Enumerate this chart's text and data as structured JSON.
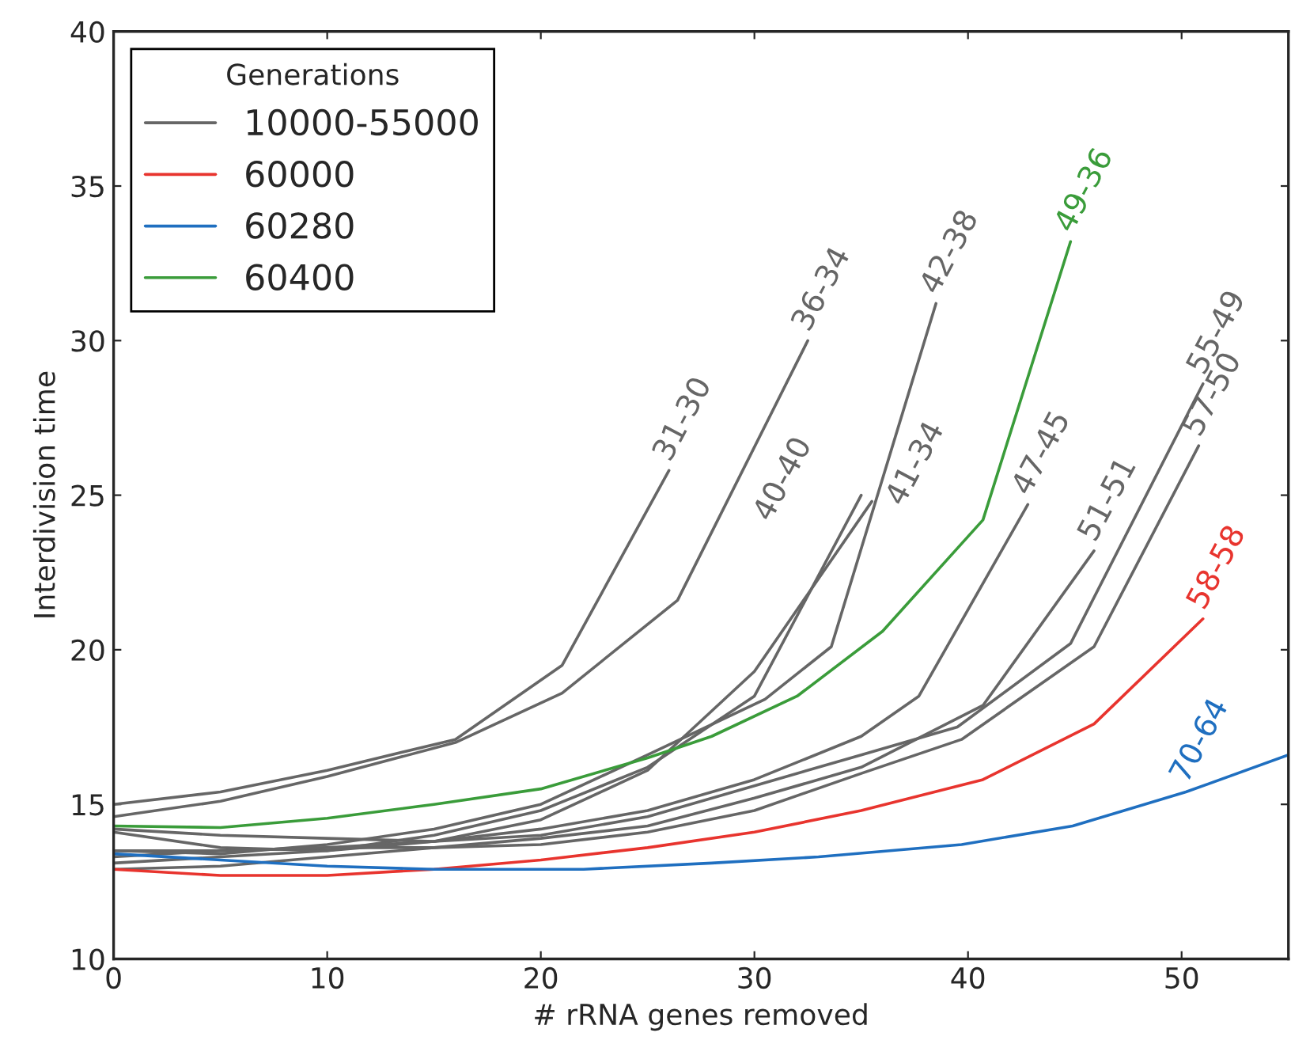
{
  "chart_data": {
    "type": "line",
    "xlabel": "# rRNA genes removed",
    "ylabel": "Interdivision time",
    "legend_title": "Generations",
    "legend": "top left",
    "grid": false,
    "xlim": [
      0,
      55
    ],
    "ylim": [
      10,
      40
    ],
    "xticks": [
      0,
      10,
      20,
      30,
      40,
      50
    ],
    "yticks": [
      10,
      15,
      20,
      25,
      30,
      35,
      40
    ],
    "series": [
      {
        "name": "10000-55000",
        "color": "#666666",
        "x": [
          0,
          5,
          10,
          16,
          21,
          26
        ],
        "values": [
          15.0,
          15.4,
          16.1,
          17.1,
          19.5,
          25.8
        ]
      },
      {
        "color": "#666666",
        "x": [
          0,
          5,
          10,
          16,
          21,
          26.4,
          32.5
        ],
        "values": [
          14.6,
          15.1,
          15.9,
          17.0,
          18.6,
          21.6,
          30.0
        ]
      },
      {
        "color": "#666666",
        "x": [
          0,
          5,
          10,
          15,
          20,
          25,
          30,
          35
        ],
        "values": [
          14.1,
          13.6,
          13.5,
          14.0,
          14.8,
          16.2,
          18.5,
          25.0
        ]
      },
      {
        "color": "#666666",
        "x": [
          0,
          5,
          10,
          15,
          20,
          25,
          30,
          35.5
        ],
        "values": [
          13.3,
          13.5,
          13.6,
          13.8,
          14.5,
          16.1,
          19.3,
          24.8
        ]
      },
      {
        "color": "#666666",
        "x": [
          0,
          5,
          10,
          15,
          20,
          25,
          30.5,
          33.6,
          38.5
        ],
        "values": [
          13.5,
          13.4,
          13.7,
          14.2,
          15.0,
          16.6,
          18.4,
          20.1,
          31.2
        ]
      },
      {
        "color": "#666666",
        "x": [
          0,
          5,
          10,
          15,
          20,
          25,
          30,
          35,
          37.7,
          42.8
        ],
        "values": [
          13.1,
          13.3,
          13.5,
          13.8,
          14.2,
          14.8,
          15.8,
          17.2,
          18.5,
          24.7
        ]
      },
      {
        "color": "#666666",
        "x": [
          0,
          5,
          10,
          15,
          20,
          25,
          30,
          35,
          40.7,
          45.9
        ],
        "values": [
          12.9,
          13.0,
          13.3,
          13.6,
          13.9,
          14.3,
          15.2,
          16.2,
          18.2,
          23.2
        ]
      },
      {
        "color": "#666666",
        "x": [
          0,
          5,
          10,
          15,
          20,
          25,
          30,
          35,
          39.5,
          44.8,
          51
        ],
        "values": [
          14.2,
          14.0,
          13.9,
          13.8,
          14.0,
          14.6,
          15.6,
          16.6,
          17.5,
          20.2,
          28.6
        ]
      },
      {
        "color": "#666666",
        "x": [
          0,
          5,
          10,
          15,
          20,
          25,
          30,
          35,
          39.7,
          45.9,
          50.8
        ],
        "values": [
          13.5,
          13.5,
          13.6,
          13.6,
          13.7,
          14.1,
          14.8,
          16.0,
          17.1,
          20.1,
          26.6
        ]
      },
      {
        "name": "60000",
        "color": "#e8342e",
        "x": [
          0,
          5,
          10,
          15,
          20,
          25,
          30,
          35,
          40.7,
          45.9,
          51
        ],
        "values": [
          12.9,
          12.7,
          12.7,
          12.9,
          13.2,
          13.6,
          14.1,
          14.8,
          15.8,
          17.6,
          21.0
        ]
      },
      {
        "name": "60280",
        "color": "#1f6fc0",
        "x": [
          0,
          5,
          10,
          15,
          22,
          28,
          33,
          39.7,
          44.9,
          50.2,
          55
        ],
        "values": [
          13.4,
          13.2,
          13.0,
          12.9,
          12.9,
          13.1,
          13.3,
          13.7,
          14.3,
          15.4,
          16.6
        ]
      },
      {
        "name": "60400",
        "color": "#3a9c3a",
        "x": [
          0,
          5,
          10,
          15,
          20,
          25,
          28,
          32,
          36,
          40.7,
          44.8
        ],
        "values": [
          14.3,
          14.25,
          14.55,
          15.0,
          15.5,
          16.5,
          17.2,
          18.5,
          20.6,
          24.2,
          33.2
        ]
      }
    ],
    "annotations": [
      {
        "text": "31-30",
        "x": 26,
        "y": 25.8
      },
      {
        "text": "36-34",
        "x": 32.5,
        "y": 30.0
      },
      {
        "text": "40-40",
        "x": 35,
        "y": 25.0
      },
      {
        "text": "41-34",
        "x": 35.5,
        "y": 24.8
      },
      {
        "text": "42-38",
        "x": 38.5,
        "y": 31.2
      },
      {
        "text": "47-45",
        "x": 42.8,
        "y": 24.7
      },
      {
        "text": "51-51",
        "x": 45.9,
        "y": 23.2
      },
      {
        "text": "55-49",
        "x": 51,
        "y": 28.6
      },
      {
        "text": "57-50",
        "x": 50.8,
        "y": 26.6
      },
      {
        "text": "58-58",
        "x": 51,
        "y": 21.0
      },
      {
        "text": "70-64",
        "x": 50.2,
        "y": 15.4
      },
      {
        "text": "49-36",
        "x": 44.8,
        "y": 33.2
      }
    ]
  }
}
